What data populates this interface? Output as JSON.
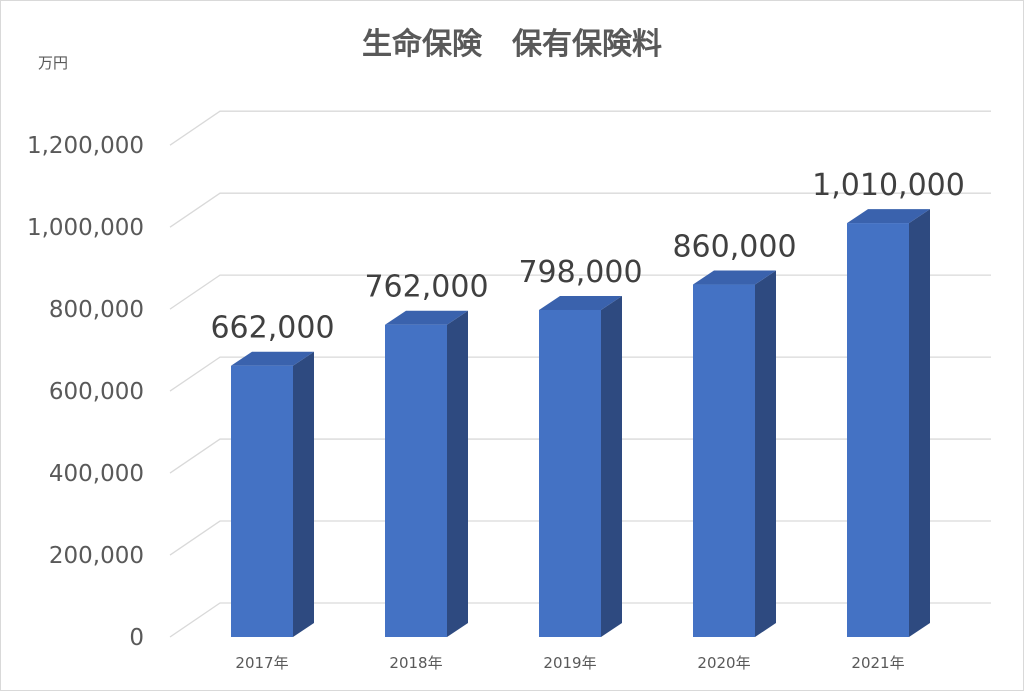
{
  "chart_data": {
    "type": "bar",
    "title": "生命保険　保有保険料",
    "unit_label": "万円",
    "categories": [
      "2017年",
      "2018年",
      "2019年",
      "2020年",
      "2021年"
    ],
    "values": [
      662000,
      762000,
      798000,
      860000,
      1010000
    ],
    "data_labels": [
      "662,000",
      "762,000",
      "798,000",
      "860,000",
      "1,010,000"
    ],
    "yticks": [
      0,
      200000,
      400000,
      600000,
      800000,
      1000000,
      1200000
    ],
    "ytick_labels": [
      "0",
      "200,000",
      "400,000",
      "600,000",
      "800,000",
      "1,000,000",
      "1,200,000"
    ],
    "ylim": [
      0,
      1200000
    ],
    "grid": true,
    "legend": "none",
    "style": "3d-column",
    "colors": {
      "bar_front": "#4472c4",
      "bar_side": "#2e4a80",
      "bar_top": "#3a62ad",
      "grid": "#d9d9d9",
      "text": "#595959"
    }
  }
}
